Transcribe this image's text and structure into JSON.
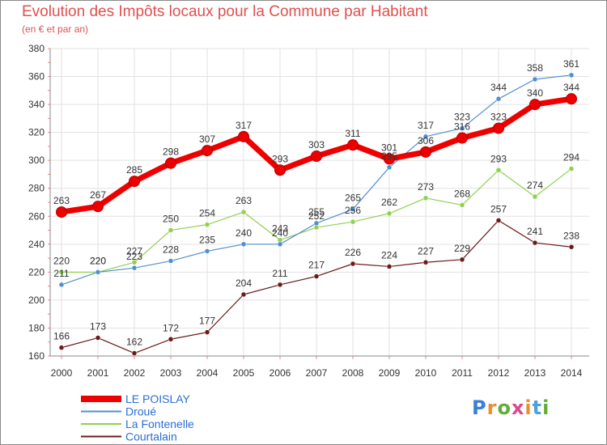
{
  "header": {
    "title": "Evolution des Impôts locaux pour la Commune par Habitant",
    "subtitle": "(en € et par an)"
  },
  "brand": {
    "text": "Proxiti",
    "letter_colors": [
      "#3a7fd5",
      "#e8912c",
      "#5fae3a",
      "#d94b8a",
      "#e8912c",
      "#4da0e0",
      "#5fae3a"
    ]
  },
  "colors": {
    "grid": "#e2e2e2",
    "axis": "#888888",
    "tick_mark": "#ff8080",
    "title": "#e05050"
  },
  "chart_data": {
    "type": "line",
    "title": "Evolution des Impôts locaux pour la Commune par Habitant",
    "subtitle": "(en € et par an)",
    "x": [
      2000,
      2001,
      2002,
      2003,
      2004,
      2005,
      2006,
      2007,
      2008,
      2009,
      2010,
      2011,
      2012,
      2013,
      2014
    ],
    "ylim": [
      160,
      380
    ],
    "yticks": [
      160,
      180,
      200,
      220,
      240,
      260,
      280,
      300,
      320,
      340,
      360,
      380
    ],
    "grid": true,
    "legend_position": "bottom-left",
    "series": [
      {
        "name": "LE POISLAY",
        "color": "#ee0000",
        "values": [
          263,
          267,
          285,
          298,
          307,
          317,
          293,
          303,
          311,
          301,
          306,
          316,
          323,
          340,
          344
        ],
        "labels": [
          "263",
          "267",
          "285",
          "298",
          "307",
          "317",
          "293",
          "303",
          "311",
          "301",
          "306",
          "316",
          "323",
          "340",
          "344"
        ]
      },
      {
        "name": "Droué",
        "color": "#4f8fd0",
        "values": [
          211,
          220,
          223,
          228,
          235,
          240,
          240,
          255,
          265,
          295,
          317,
          323,
          344,
          358,
          361
        ],
        "labels": [
          "211",
          "220",
          "223",
          "228",
          "235",
          "240",
          "240",
          "255",
          "265",
          "295",
          "317",
          "323",
          "344",
          "358",
          "361"
        ]
      },
      {
        "name": "La Fontenelle",
        "color": "#8fd050",
        "values": [
          220,
          220,
          227,
          250,
          254,
          263,
          243,
          252,
          256,
          262,
          273,
          268,
          293,
          274,
          294
        ],
        "labels": [
          "220",
          "220",
          "227",
          "250",
          "254",
          "263",
          "243",
          "252",
          "256",
          "262",
          "273",
          "268",
          "293",
          "274",
          "294"
        ]
      },
      {
        "name": "Courtalain",
        "color": "#6b1a1a",
        "values": [
          166,
          173,
          162,
          172,
          177,
          204,
          211,
          217,
          226,
          224,
          227,
          229,
          257,
          241,
          238
        ],
        "labels": [
          "166",
          "173",
          "162",
          "172",
          "177",
          "204",
          "211",
          "217",
          "226",
          "224",
          "227",
          "229",
          "257",
          "241",
          "238"
        ]
      }
    ]
  }
}
